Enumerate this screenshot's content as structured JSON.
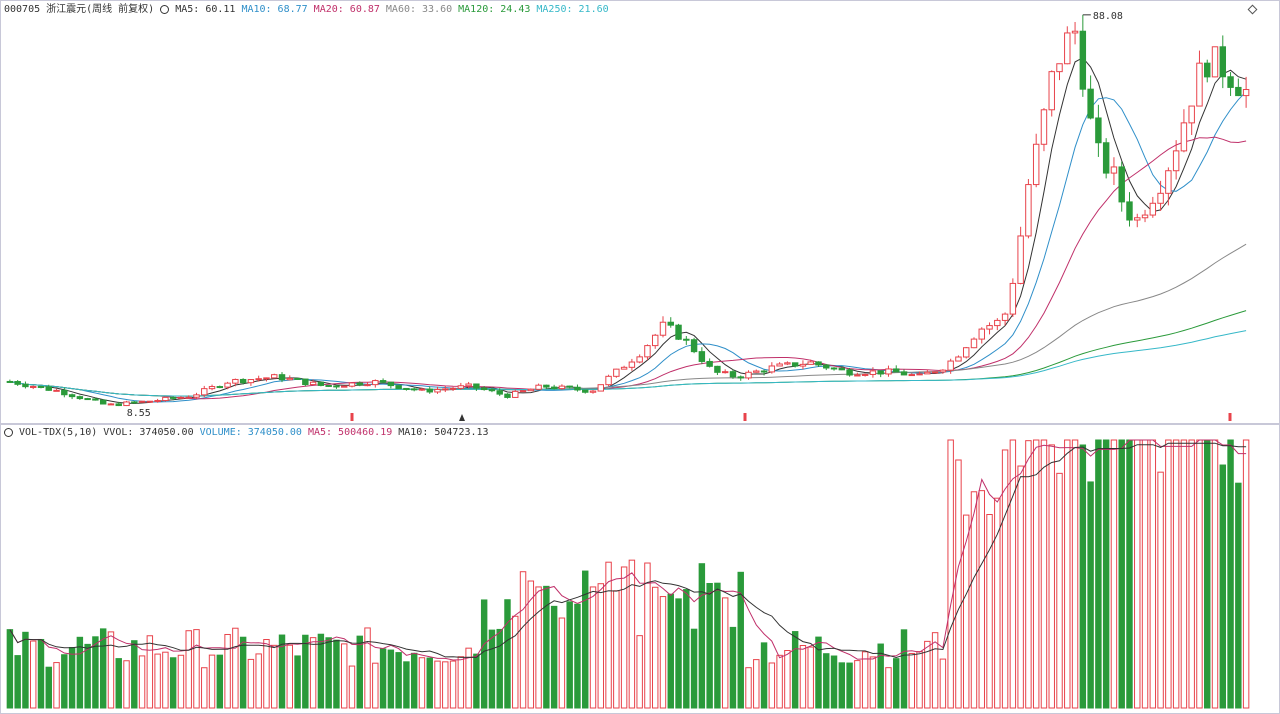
{
  "header": {
    "stock_label": "000705 浙江震元(周线 前复权)",
    "ma_items": [
      {
        "label": "MA5: 60.11",
        "color": "#333333"
      },
      {
        "label": "MA10: 68.77",
        "color": "#2f8fc9"
      },
      {
        "label": "MA20: 60.87",
        "color": "#c0306a"
      },
      {
        "label": "MA60: 33.60",
        "color": "#888888"
      },
      {
        "label": "MA120: 24.43",
        "color": "#2a9a3a"
      },
      {
        "label": "MA250: 21.60",
        "color": "#36b8c8"
      }
    ]
  },
  "volume_header": {
    "items": [
      {
        "label": "VOL-TDX(5,10)",
        "color": "#333333"
      },
      {
        "label": "VVOL: 374050.00",
        "color": "#333333"
      },
      {
        "label": "VOLUME: 374050.00",
        "color": "#2f8fc9"
      },
      {
        "label": "MA5: 500460.19",
        "color": "#c0306a"
      },
      {
        "label": "MA10: 504723.13",
        "color": "#333333"
      }
    ]
  },
  "chart_data": [
    {
      "type": "candlestick",
      "title": "",
      "annotations": [
        {
          "label": "88.08",
          "kind": "max"
        },
        {
          "label": "8.55",
          "kind": "min"
        }
      ],
      "up_color": "#e8434b",
      "down_color": "#2a9a3a",
      "candles_note": "weekly OHLC series, approx. 160 bars, values estimated from pixels",
      "ma_lines": [
        "MA5",
        "MA10",
        "MA20",
        "MA60",
        "MA120",
        "MA250"
      ]
    },
    {
      "type": "bar",
      "title": "",
      "series_ma": [
        "MA5",
        "MA10"
      ]
    }
  ]
}
